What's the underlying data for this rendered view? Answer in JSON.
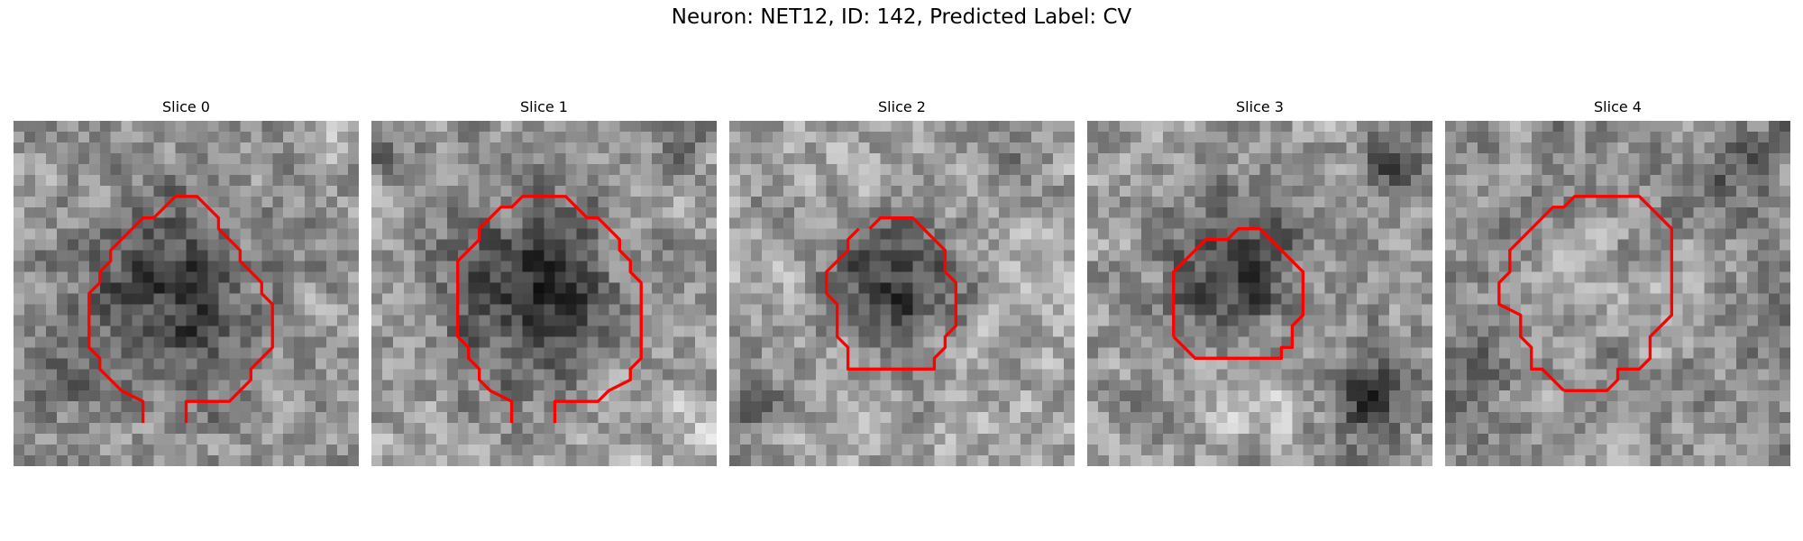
{
  "figure": {
    "title": "Neuron: NET12, ID: 142, Predicted Label: CV"
  },
  "panels": [
    {
      "title": "Slice 0"
    },
    {
      "title": "Slice 1"
    },
    {
      "title": "Slice 2"
    },
    {
      "title": "Slice 3"
    },
    {
      "title": "Slice 4"
    }
  ],
  "colors": {
    "contour": "#ff0000",
    "image_colormap": "grayscale"
  }
}
